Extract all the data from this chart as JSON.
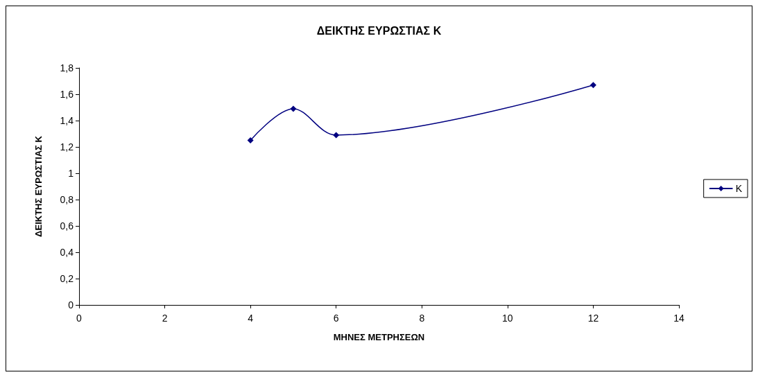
{
  "chart_data": {
    "type": "line",
    "title": "ΔΕΙΚΤΗΣ ΕΥΡΩΣΤΙΑΣ Κ",
    "xlabel": "ΜΗΝΕΣ ΜΕΤΡΗΣΕΩΝ",
    "ylabel": "ΔΕΙΚΤΗΣ ΕΥΡΩΣΤΙΑΣ Κ",
    "x": [
      4,
      5,
      6,
      12
    ],
    "series": [
      {
        "name": "Κ",
        "color": "#000080",
        "values": [
          1.25,
          1.49,
          1.29,
          1.67
        ]
      }
    ],
    "xlim": [
      0,
      14
    ],
    "xticks": [
      0,
      2,
      4,
      6,
      8,
      10,
      12,
      14
    ],
    "ylim": [
      0,
      1.8
    ],
    "yticks": [
      0,
      {
        "value": 0.2,
        "label": "0,2"
      },
      {
        "value": 0.4,
        "label": "0,4"
      },
      {
        "value": 0.6,
        "label": "0,6"
      },
      {
        "value": 0.8,
        "label": "0,8"
      },
      1,
      {
        "value": 1.2,
        "label": "1,2"
      },
      {
        "value": 1.4,
        "label": "1,4"
      },
      {
        "value": 1.6,
        "label": "1,6"
      },
      {
        "value": 1.8,
        "label": "1,8"
      }
    ],
    "grid": false,
    "legend": "right",
    "marker": "diamond",
    "line_style": "solid"
  }
}
